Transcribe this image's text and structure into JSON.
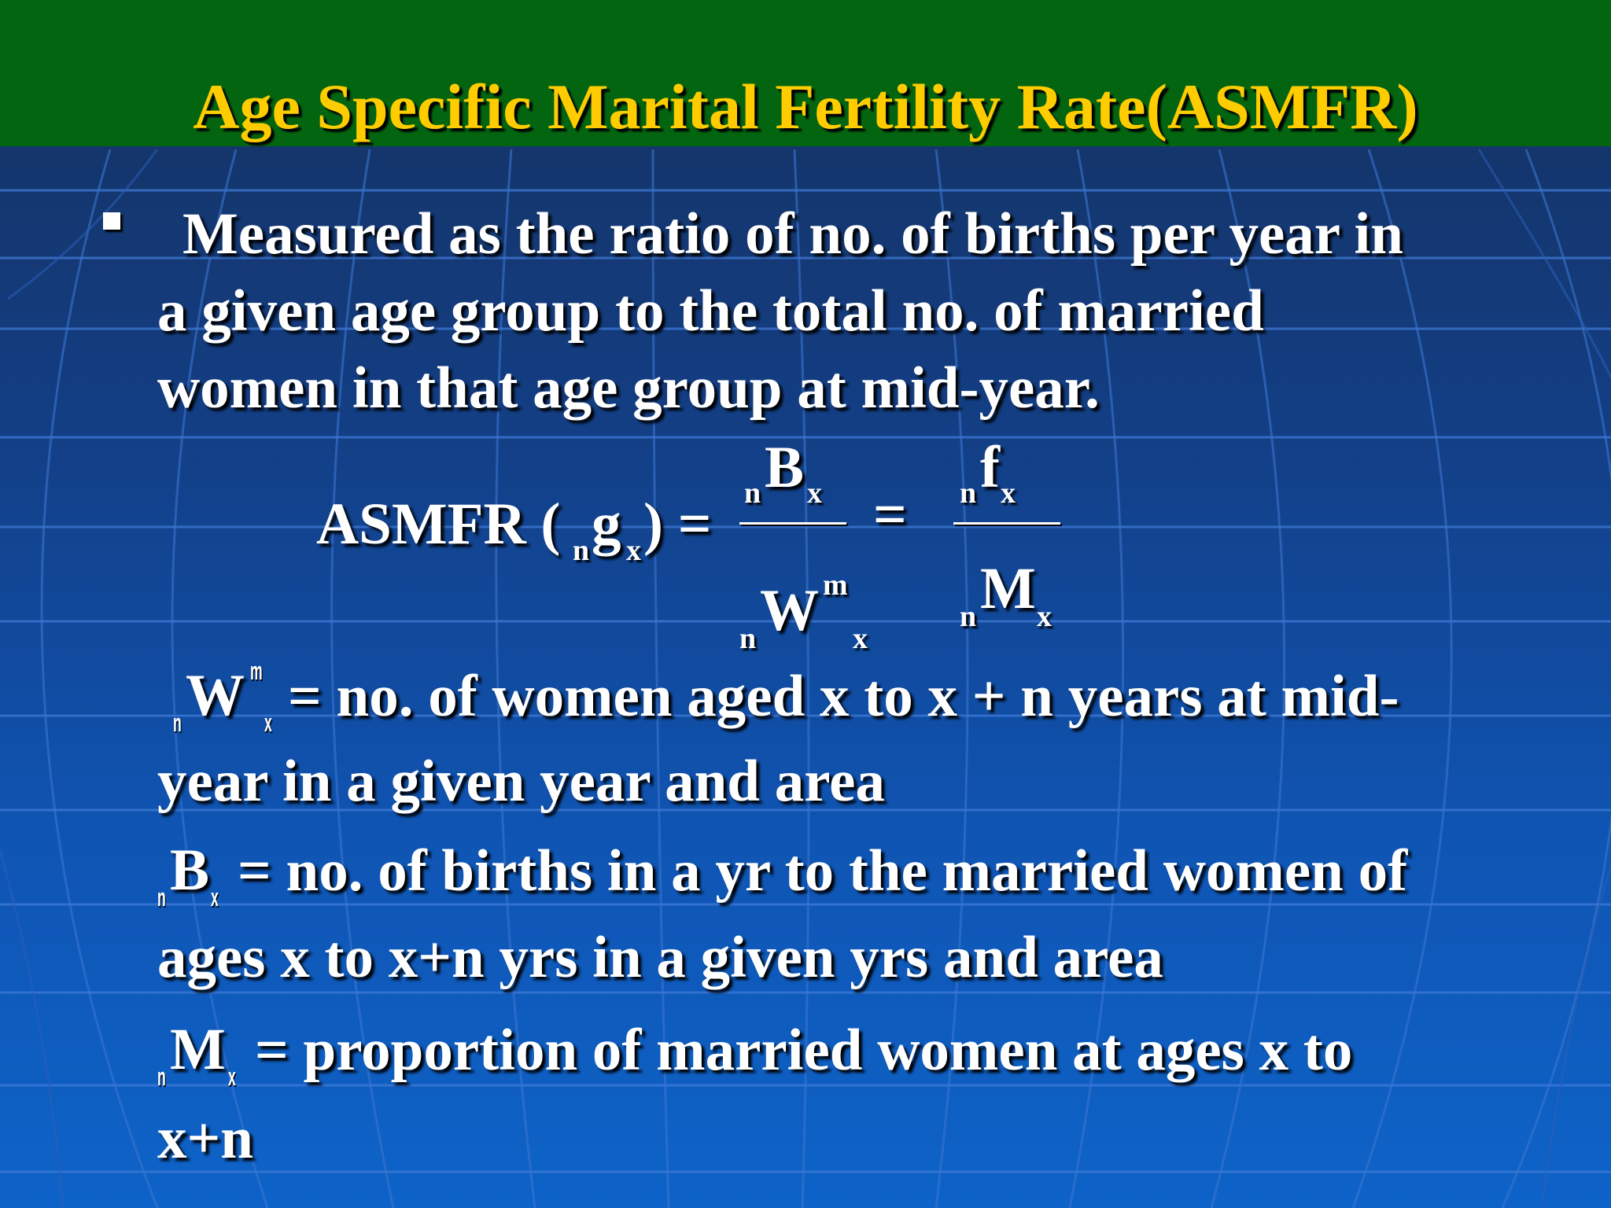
{
  "slide": {
    "title": "Age Specific Marital Fertility Rate(ASMFR)",
    "bullet_lines": [
      "Measured as the ratio of no. of births per year in",
      "a given age group to the total no. of married",
      "women in that age group at mid-year."
    ],
    "formula": {
      "lhs": "ASMFR (",
      "lhs_sub_n": "n",
      "lhs_g": "g",
      "lhs_sub_x": "x",
      "lhs_close": ") =",
      "num1_pre": "n",
      "num1_main": "B",
      "num1_sub": "x",
      "den1_pre": "n",
      "den1_main": "W",
      "den1_sup": "m",
      "den1_sub": "x",
      "equals": "=",
      "num2_pre": "n",
      "num2_main": "f",
      "num2_sub": "x",
      "den2_pre": "n",
      "den2_main": "M",
      "den2_sub": "x"
    },
    "definitions": {
      "w_pre": "n",
      "w_main": "W",
      "w_sup": "m",
      "w_sub": "x",
      "w_text_1": "= no. of women aged x to x + n years at mid-",
      "w_text_2": "year in a given year and area",
      "b_pre": "n",
      "b_main": "B",
      "b_sub": "x",
      "b_text_1": "=  no. of births in a yr to the married women of",
      "b_text_2": "ages x to x+n yrs in a given yrs and area",
      "m_pre": "n",
      "m_main": "M",
      "m_sub": "x",
      "m_text_1": "= proportion of married women at ages x to",
      "m_text_2": "x+n"
    }
  },
  "colors": {
    "title_bar": "#046510",
    "title_text": "#ffcc00",
    "body_text": "#ffffff"
  }
}
